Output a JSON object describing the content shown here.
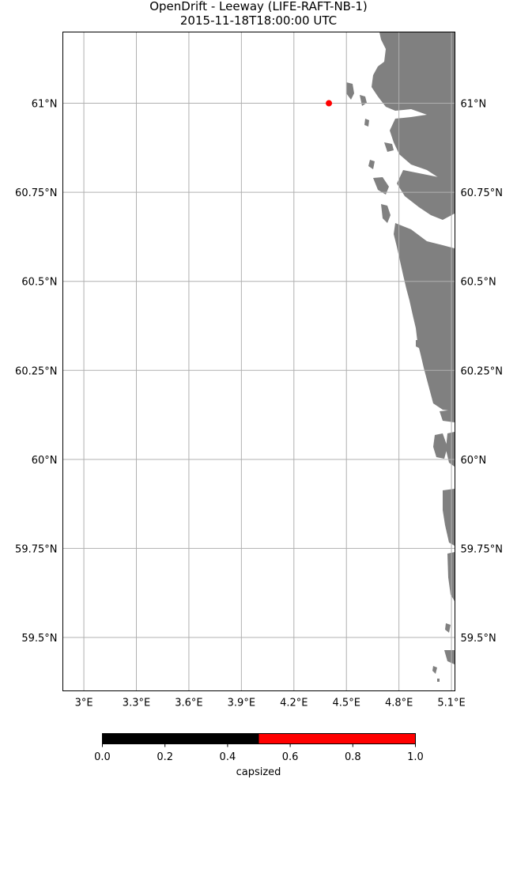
{
  "title": {
    "line1": "OpenDrift - Leeway (LIFE-RAFT-NB-1)",
    "line2": "2015-11-18T18:00:00 UTC"
  },
  "map": {
    "lon_range": [
      2.88,
      5.12
    ],
    "lat_range": [
      59.35,
      61.2
    ],
    "gridline_color": "#b0b0b0",
    "land_color": "#808080",
    "lon_ticks": [
      {
        "value": 3.0,
        "label": "3°E"
      },
      {
        "value": 3.3,
        "label": "3.3°E"
      },
      {
        "value": 3.6,
        "label": "3.6°E"
      },
      {
        "value": 3.9,
        "label": "3.9°E"
      },
      {
        "value": 4.2,
        "label": "4.2°E"
      },
      {
        "value": 4.5,
        "label": "4.5°E"
      },
      {
        "value": 4.8,
        "label": "4.8°E"
      },
      {
        "value": 5.1,
        "label": "5.1°E"
      }
    ],
    "lat_ticks": [
      {
        "value": 61.0,
        "label": "61°N"
      },
      {
        "value": 60.75,
        "label": "60.75°N"
      },
      {
        "value": 60.5,
        "label": "60.5°N"
      },
      {
        "value": 60.25,
        "label": "60.25°N"
      },
      {
        "value": 60.0,
        "label": "60°N"
      },
      {
        "value": 59.75,
        "label": "59.75°N"
      },
      {
        "value": 59.5,
        "label": "59.5°N"
      }
    ],
    "particles": [
      {
        "lon": 4.4,
        "lat": 61.0,
        "capsized": 1.0,
        "color": "#ff0000"
      }
    ]
  },
  "colorbar": {
    "label": "capsized",
    "colors": [
      "#000000",
      "#ff0000"
    ],
    "ticks": [
      "0.0",
      "0.2",
      "0.4",
      "0.6",
      "0.8",
      "1.0"
    ]
  }
}
